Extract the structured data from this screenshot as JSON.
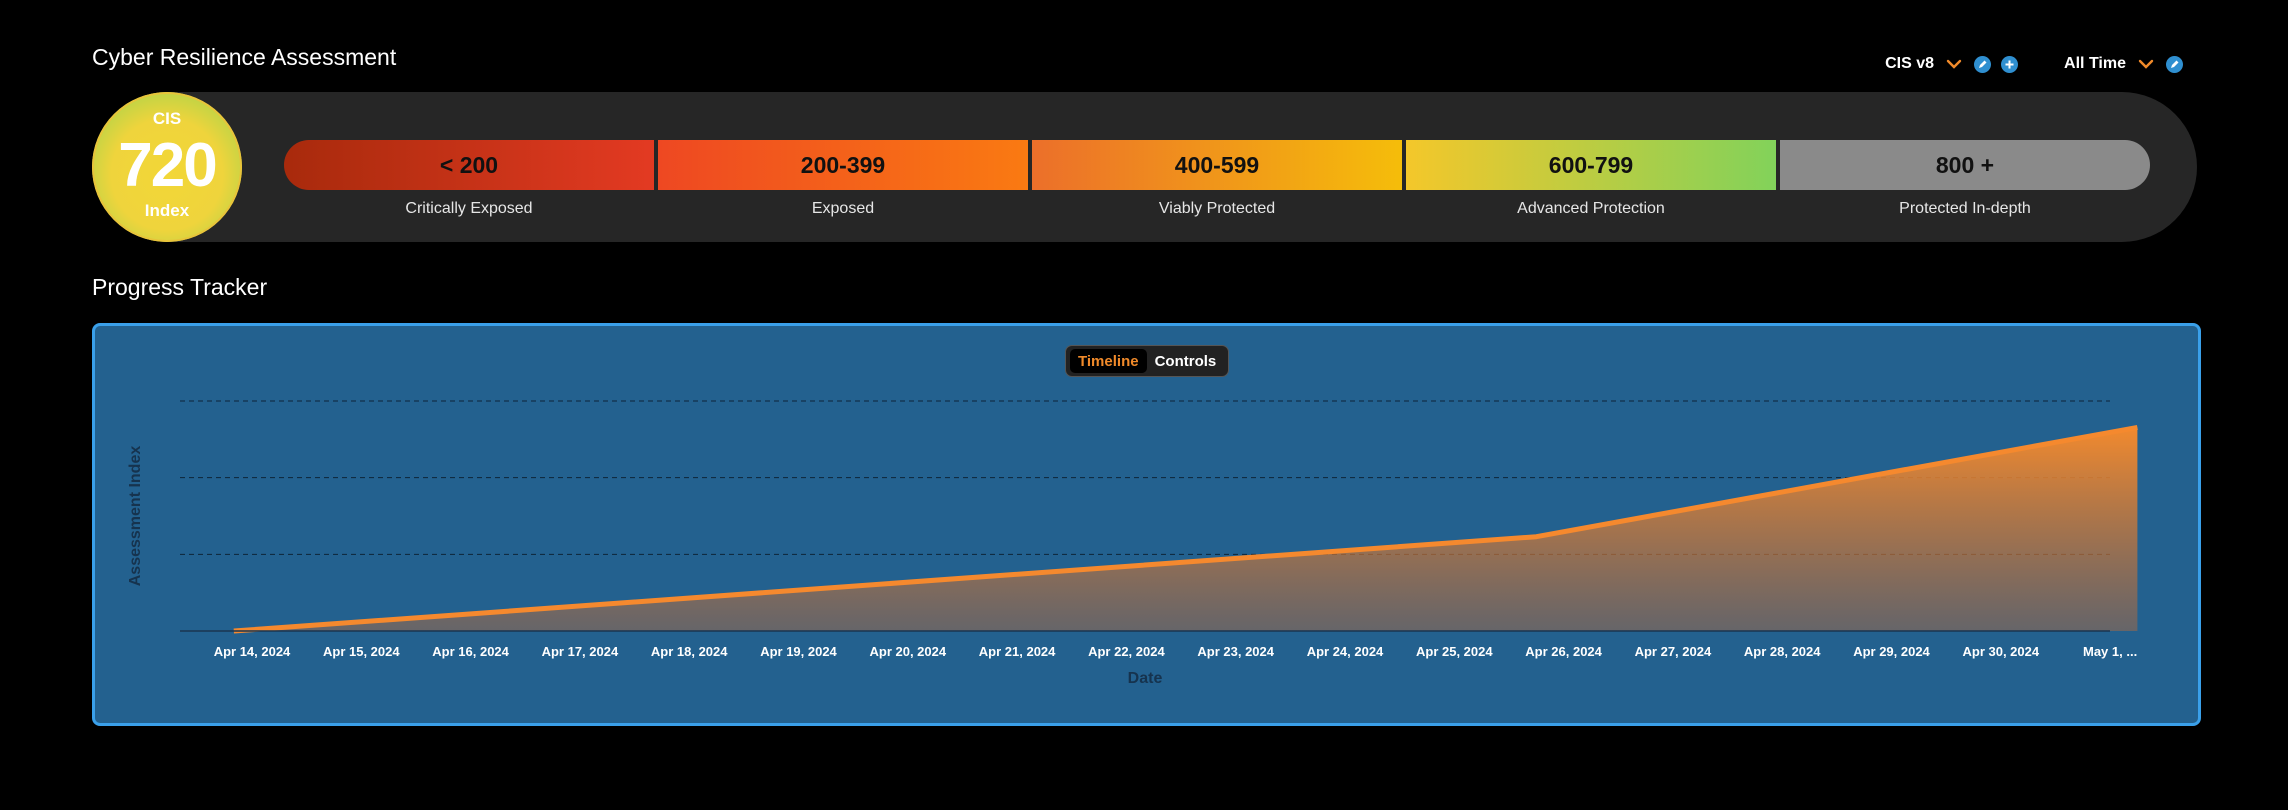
{
  "header": {
    "title": "Cyber Resilience Assessment"
  },
  "filters": {
    "framework": "CIS v8",
    "period": "All Time"
  },
  "score": {
    "label_top": "CIS",
    "value": "720",
    "label_bottom": "Index"
  },
  "segments": [
    {
      "range": "< 200",
      "label": "Critically Exposed"
    },
    {
      "range": "200-399",
      "label": "Exposed"
    },
    {
      "range": "400-599",
      "label": "Viably Protected"
    },
    {
      "range": "600-799",
      "label": "Advanced Protection"
    },
    {
      "range": "800 +",
      "label": "Protected In-depth"
    }
  ],
  "progress": {
    "title": "Progress Tracker",
    "tabs": {
      "timeline": "Timeline",
      "controls": "Controls"
    }
  },
  "colors": {
    "accent": "#f08a2a",
    "panel": "#23618f",
    "panel_border": "#3aa0ea"
  },
  "chart_data": {
    "type": "area",
    "xlabel": "Date",
    "ylabel": "Assessment Index",
    "x_ticks": [
      "Apr 14, 2024",
      "Apr 15, 2024",
      "Apr 16, 2024",
      "Apr 17, 2024",
      "Apr 18, 2024",
      "Apr 19, 2024",
      "Apr 20, 2024",
      "Apr 21, 2024",
      "Apr 22, 2024",
      "Apr 23, 2024",
      "Apr 24, 2024",
      "Apr 25, 2024",
      "Apr 26, 2024",
      "Apr 27, 2024",
      "Apr 28, 2024",
      "Apr 29, 2024",
      "Apr 30, 2024",
      "May 1, ..."
    ],
    "x": [
      "2024-04-13T20:00",
      "2024-04-25T18:00",
      "2024-05-01T06:00"
    ],
    "y": [
      0,
      410,
      885
    ],
    "ylim": [
      0,
      1000
    ],
    "grid": true
  }
}
